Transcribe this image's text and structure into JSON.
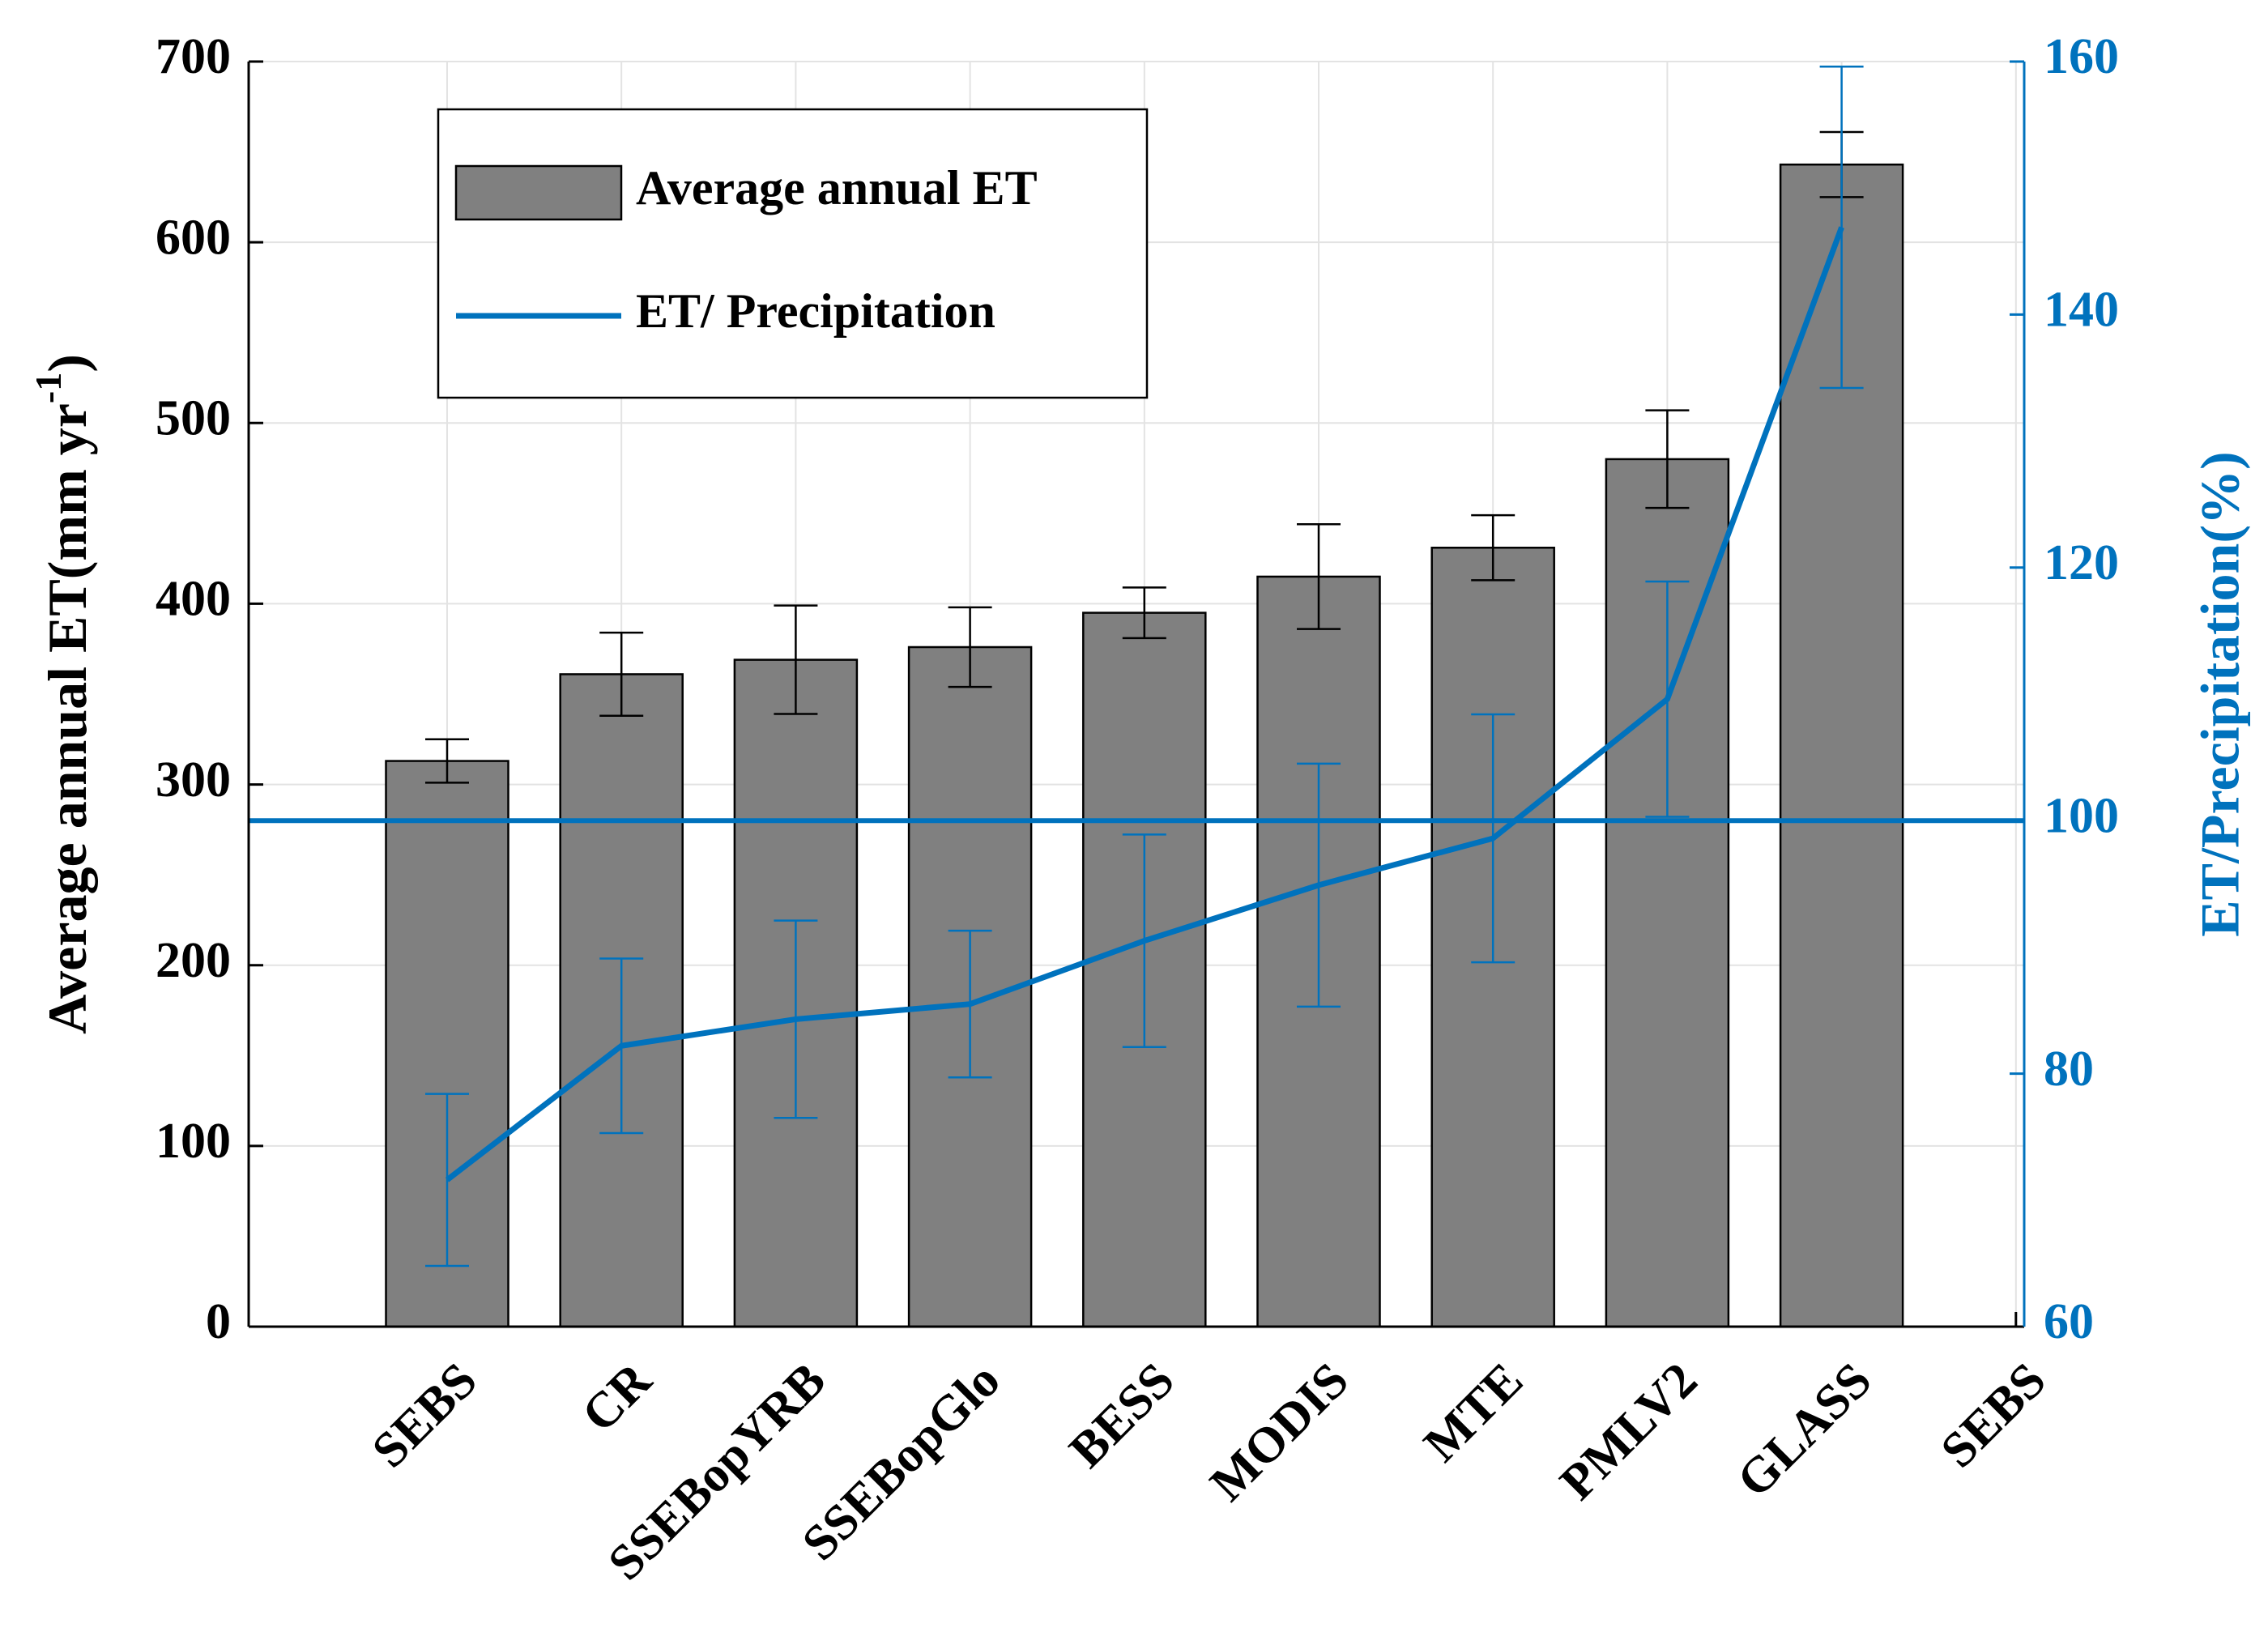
{
  "chart_data": {
    "type": "bar",
    "ylabel": {
      "text": "Average annual ET(mm yr",
      "sup": "-1",
      "end": ")"
    },
    "y2label": "ET/Precipitation(%)",
    "categories": [
      "SEBS",
      "CR",
      "SSEBopYRB",
      "SSEBopGlo",
      "BESS",
      "MODIS",
      "MTE",
      "PMLV2",
      "GLASS",
      "SEBS"
    ],
    "series": [
      {
        "name": "Average annual ET",
        "type": "bar",
        "color": "#808080",
        "values": [
          313,
          361,
          369,
          376,
          395,
          415,
          431,
          480,
          643,
          null
        ],
        "errors": [
          12,
          23,
          30,
          22,
          14,
          29,
          18,
          27,
          18,
          null
        ]
      },
      {
        "name": "ET/ Precipitation",
        "type": "line",
        "axis": "y2",
        "color": "#0072bd",
        "values": [
          71.6,
          82.2,
          84.3,
          85.5,
          90.5,
          94.9,
          98.6,
          109.6,
          146.9,
          null
        ],
        "errors": [
          6.8,
          6.9,
          7.8,
          5.8,
          8.4,
          9.6,
          9.8,
          9.3,
          12.7,
          null
        ]
      }
    ],
    "reference_line": {
      "axis": "y2",
      "value": 100,
      "color": "#0072bd"
    },
    "ylim": [
      0,
      700
    ],
    "yticks": [
      0,
      100,
      200,
      300,
      400,
      500,
      600,
      700
    ],
    "y2lim": [
      60,
      160
    ],
    "y2ticks": [
      60,
      80,
      100,
      120,
      140,
      160
    ],
    "y2color": "#0072bd",
    "grid": true,
    "legend": "upper left"
  }
}
